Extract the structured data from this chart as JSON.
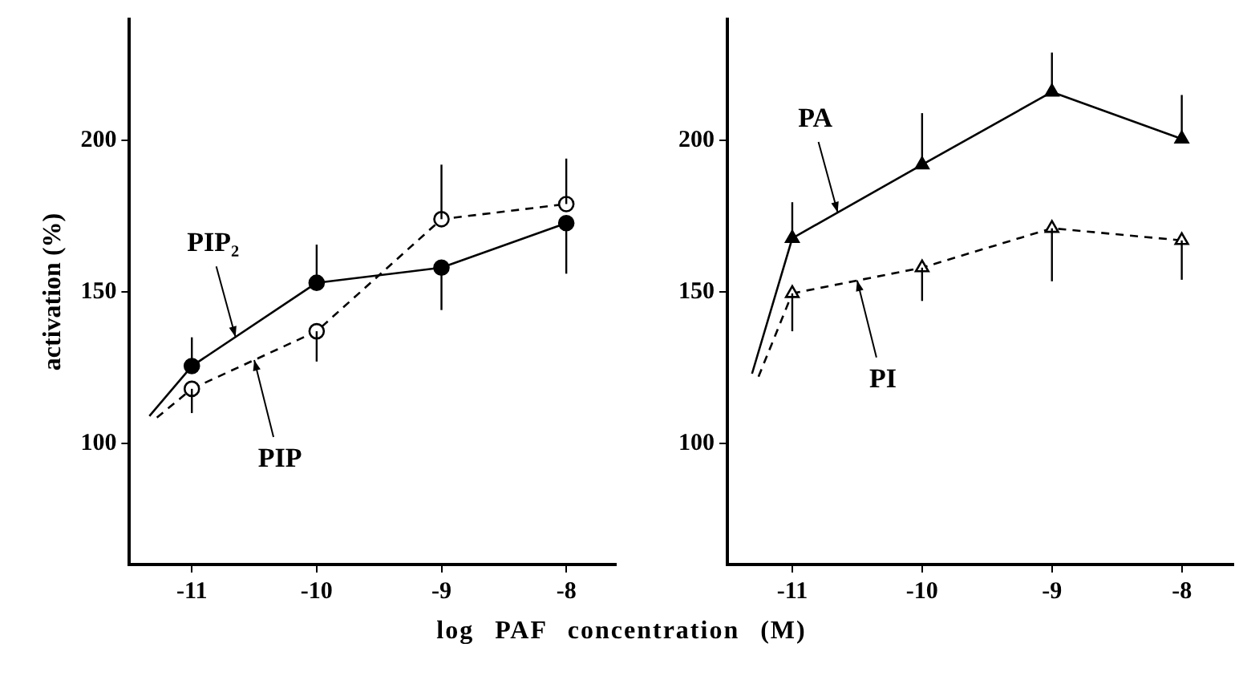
{
  "chart_data": [
    {
      "type": "line",
      "ylabel": "activation (%)",
      "xlabel": "log PAF concentration (M)",
      "xlim": [
        -11.5,
        -7.6
      ],
      "ylim": [
        60,
        240
      ],
      "xticks": [
        -11,
        -10,
        -9,
        -8
      ],
      "yticks": [
        100,
        150,
        200
      ],
      "grid": false,
      "legend": false,
      "series": [
        {
          "name": "PIP₂",
          "color": "#000000",
          "marker": "circle",
          "line_style": "solid",
          "x": [
            -11,
            -10,
            -9,
            -8
          ],
          "values": [
            125.5,
            153,
            158,
            172.7
          ],
          "errors": [
            [
              125.5,
              135
            ],
            [
              153,
              165.6
            ],
            [
              144,
              158
            ],
            [
              156,
              172.7
            ]
          ]
        },
        {
          "name": "PIP",
          "color": "#000000",
          "marker": "circle",
          "line_style": "dashed",
          "x": [
            -11,
            -10,
            -9,
            -8
          ],
          "values": [
            118,
            137,
            174,
            179
          ],
          "errors": [
            [
              110,
              118
            ],
            [
              127,
              137
            ],
            [
              174,
              192
            ],
            [
              179,
              194
            ]
          ]
        },
        {
          "color": "#000000",
          "marker": "none",
          "line_style": "solid",
          "x": [
            -11.34,
            -11
          ],
          "values": [
            109,
            125.5
          ]
        },
        {
          "color": "#000000",
          "marker": "none",
          "line_style": "dashed",
          "x": [
            -11.28,
            -11
          ],
          "values": [
            108.5,
            118
          ]
        }
      ]
    },
    {
      "type": "line",
      "xlim": [
        -11.5,
        -7.6
      ],
      "ylim": [
        60,
        240
      ],
      "xticks": [
        -11,
        -10,
        -9,
        -8
      ],
      "yticks": [
        100,
        150,
        200
      ],
      "grid": false,
      "legend": false,
      "series": [
        {
          "name": "PA",
          "color": "#000000",
          "marker": "triangle",
          "line_style": "solid",
          "x": [
            -11,
            -10,
            -9,
            -8
          ],
          "values": [
            167.7,
            192,
            216,
            200.5
          ],
          "errors": [
            [
              167.7,
              179.6
            ],
            [
              192,
              209
            ],
            [
              216,
              229
            ],
            [
              200.5,
              215
            ]
          ]
        },
        {
          "name": "PI",
          "color": "#000000",
          "marker": "triangle",
          "line_style": "dashed",
          "x": [
            -11,
            -10,
            -9,
            -8
          ],
          "values": [
            149.5,
            158,
            171,
            167
          ],
          "errors": [
            [
              137,
              149.5
            ],
            [
              147,
              158
            ],
            [
              153.5,
              171
            ],
            [
              154,
              167
            ]
          ]
        },
        {
          "color": "#000000",
          "marker": "none",
          "line_style": "solid",
          "x": [
            -11.31,
            -11
          ],
          "values": [
            123,
            167.7
          ]
        },
        {
          "color": "#000000",
          "marker": "none",
          "line_style": "dashed",
          "x": [
            -11.26,
            -11
          ],
          "values": [
            122,
            149.5
          ]
        }
      ]
    }
  ]
}
